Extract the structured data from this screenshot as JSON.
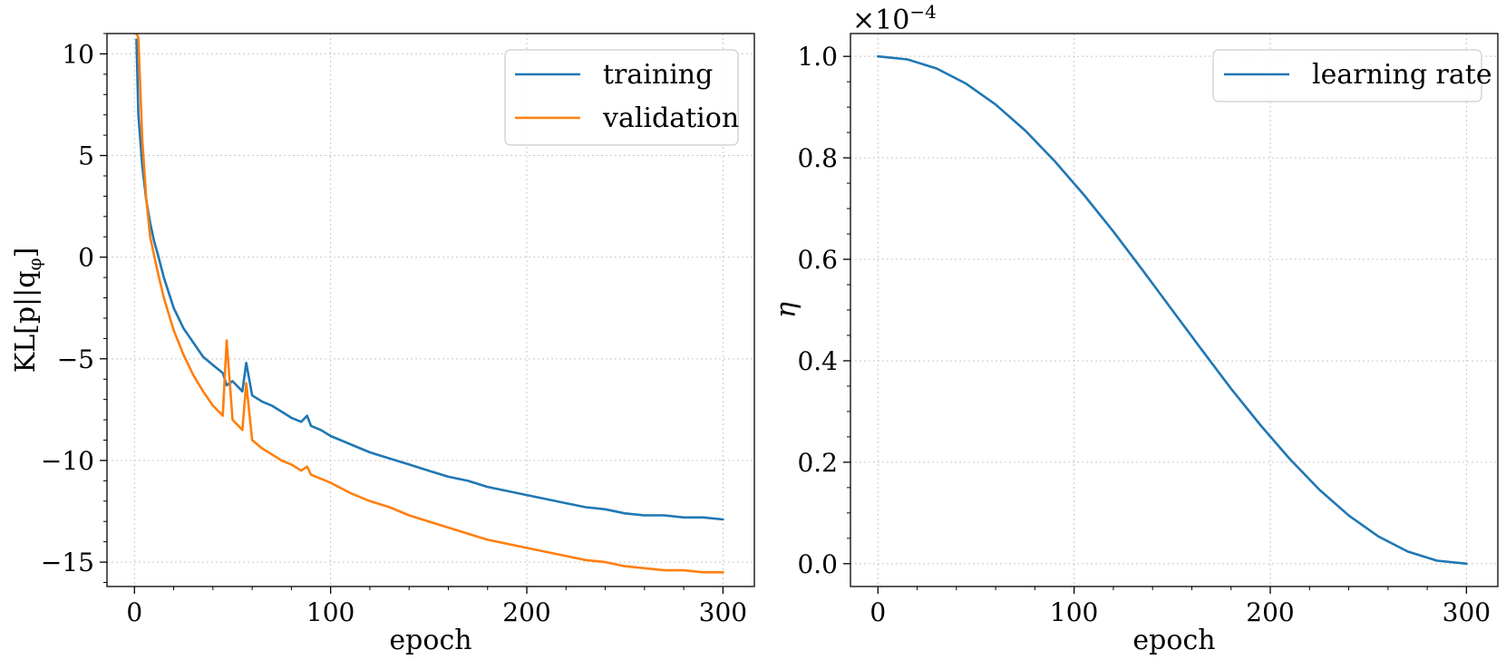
{
  "chart_data": [
    {
      "type": "line",
      "title": "",
      "xlabel": "epoch",
      "ylabel": "KL[p||q_φ]",
      "xlim": [
        -14,
        316
      ],
      "ylim": [
        -16.2,
        11.0
      ],
      "xticks": [
        0,
        100,
        200,
        300
      ],
      "xtick_labels": [
        "0",
        "100",
        "200",
        "300"
      ],
      "yticks": [
        10,
        5,
        0,
        -5,
        -10,
        -15
      ],
      "ytick_labels": [
        "10",
        "5",
        "0",
        "−5",
        "−10",
        "−15"
      ],
      "grid": true,
      "legend_position": "upper right",
      "x": [
        1,
        2,
        4,
        6,
        8,
        10,
        12,
        15,
        20,
        25,
        30,
        35,
        40,
        45,
        47,
        50,
        55,
        57,
        60,
        65,
        70,
        75,
        80,
        85,
        88,
        90,
        95,
        100,
        110,
        120,
        130,
        140,
        150,
        160,
        170,
        180,
        190,
        200,
        210,
        220,
        230,
        240,
        250,
        260,
        270,
        280,
        290,
        300
      ],
      "series": [
        {
          "name": "training",
          "color": "#1f77b4",
          "values": [
            10.7,
            7.0,
            4.5,
            2.8,
            1.7,
            0.8,
            0.1,
            -1.0,
            -2.5,
            -3.5,
            -4.2,
            -4.9,
            -5.3,
            -5.7,
            -6.3,
            -6.1,
            -6.6,
            -5.2,
            -6.8,
            -7.1,
            -7.3,
            -7.6,
            -7.9,
            -8.1,
            -7.8,
            -8.3,
            -8.5,
            -8.8,
            -9.2,
            -9.6,
            -9.9,
            -10.2,
            -10.5,
            -10.8,
            -11.0,
            -11.3,
            -11.5,
            -11.7,
            -11.9,
            -12.1,
            -12.3,
            -12.4,
            -12.6,
            -12.7,
            -12.7,
            -12.8,
            -12.8,
            -12.9
          ]
        },
        {
          "name": "validation",
          "color": "#ff7f0e",
          "values": [
            11.0,
            10.8,
            5.8,
            2.9,
            1.0,
            0.1,
            -0.8,
            -2.0,
            -3.6,
            -4.8,
            -5.8,
            -6.6,
            -7.3,
            -7.8,
            -4.1,
            -8.0,
            -8.5,
            -6.2,
            -9.0,
            -9.4,
            -9.7,
            -10.0,
            -10.2,
            -10.5,
            -10.3,
            -10.7,
            -10.9,
            -11.1,
            -11.6,
            -12.0,
            -12.3,
            -12.7,
            -13.0,
            -13.3,
            -13.6,
            -13.9,
            -14.1,
            -14.3,
            -14.5,
            -14.7,
            -14.9,
            -15.0,
            -15.2,
            -15.3,
            -15.4,
            -15.4,
            -15.5,
            -15.5
          ]
        }
      ]
    },
    {
      "type": "line",
      "title": "",
      "xlabel": "epoch",
      "ylabel": "η",
      "y_multiplier": "×10⁻⁴",
      "xlim": [
        -14,
        316
      ],
      "ylim": [
        -0.045,
        1.045
      ],
      "xticks": [
        0,
        100,
        200,
        300
      ],
      "xtick_labels": [
        "0",
        "100",
        "200",
        "300"
      ],
      "yticks": [
        0.0,
        0.2,
        0.4,
        0.6,
        0.8,
        1.0
      ],
      "ytick_labels": [
        "0.0",
        "0.2",
        "0.4",
        "0.6",
        "0.8",
        "1.0"
      ],
      "grid": true,
      "legend_position": "upper right",
      "x": [
        0,
        15,
        30,
        45,
        60,
        75,
        90,
        105,
        120,
        135,
        150,
        165,
        180,
        195,
        210,
        225,
        240,
        255,
        270,
        285,
        300
      ],
      "series": [
        {
          "name": "learning rate",
          "color": "#1f77b4",
          "values": [
            1.0,
            0.994,
            0.976,
            0.946,
            0.905,
            0.854,
            0.794,
            0.727,
            0.655,
            0.578,
            0.5,
            0.422,
            0.345,
            0.273,
            0.206,
            0.146,
            0.095,
            0.054,
            0.024,
            0.006,
            0.0
          ]
        }
      ]
    }
  ],
  "left_panel": {
    "ylabel_main": "KL[p||q",
    "ylabel_sub": "φ",
    "ylabel_close": "]",
    "legend": [
      "training",
      "validation"
    ]
  },
  "right_panel": {
    "multiplier_base": "×10",
    "multiplier_exp": "−4",
    "legend": [
      "learning rate"
    ]
  }
}
